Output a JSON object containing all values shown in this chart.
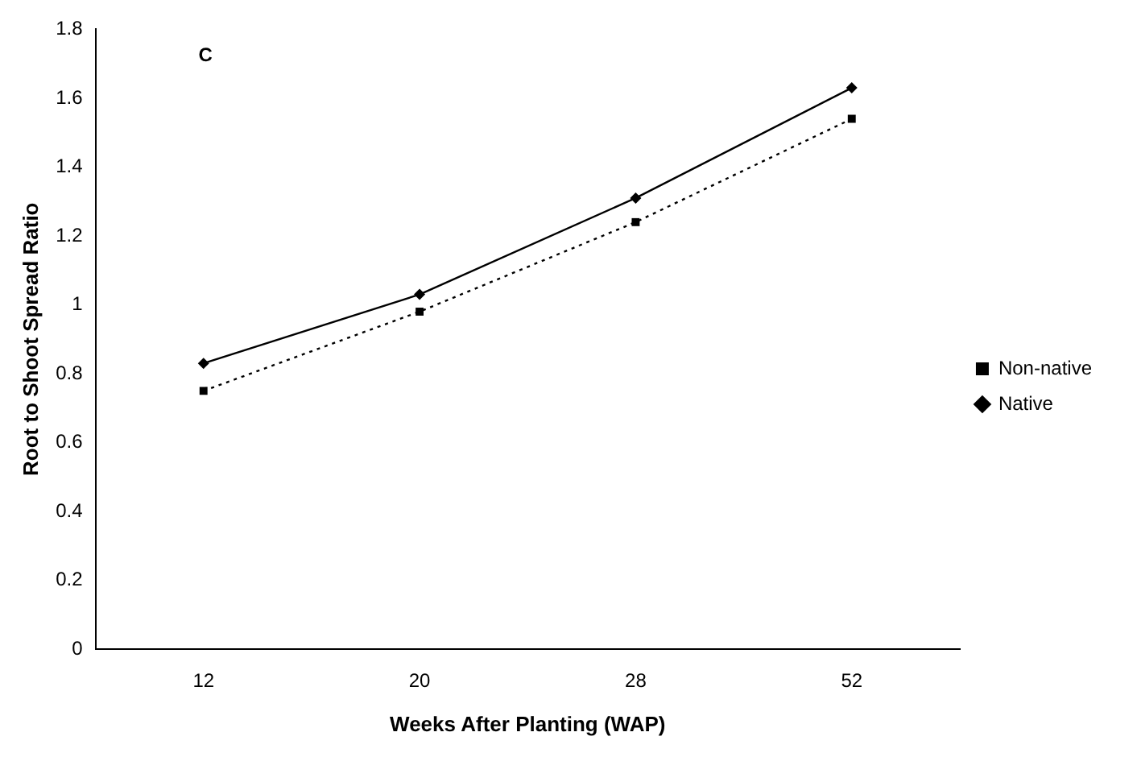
{
  "chart_data": {
    "type": "line",
    "xlabel": "Weeks After Planting (WAP)",
    "ylabel": "Root to Shoot Spread Ratio",
    "annotations": [
      "C"
    ],
    "categories": [
      "12",
      "20",
      "28",
      "52"
    ],
    "series": [
      {
        "name": "Non-native",
        "color": "#000000",
        "values": [
          0.75,
          0.98,
          1.24,
          1.54
        ],
        "marker": "square",
        "line_style": "dotted"
      },
      {
        "name": "Native",
        "color": "#000000",
        "values": [
          0.83,
          1.03,
          1.31,
          1.63
        ],
        "marker": "diamond",
        "line_style": "solid"
      }
    ],
    "ylim": [
      0,
      1.8
    ],
    "yticks": [
      0,
      0.2,
      0.4,
      0.6,
      0.8,
      1,
      1.2,
      1.4,
      1.6,
      1.8
    ],
    "grid": false,
    "legend": "right"
  }
}
